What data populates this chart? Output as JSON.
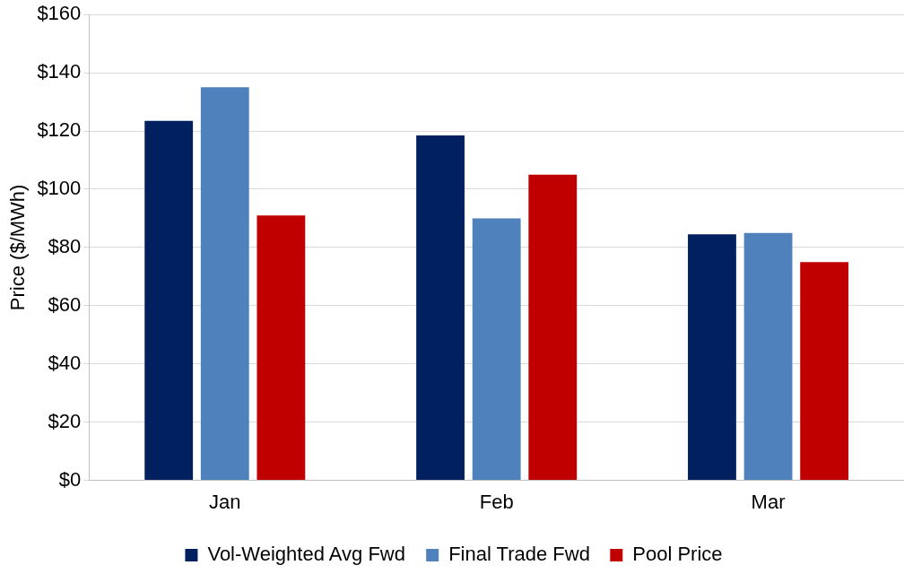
{
  "chart_data": {
    "type": "bar",
    "ylabel": "Price ($/MWh)",
    "categories": [
      "Jan",
      "Feb",
      "Mar"
    ],
    "series": [
      {
        "name": "Vol-Weighted Avg Fwd",
        "color": "#002060",
        "values": [
          123.5,
          118.5,
          84.5
        ]
      },
      {
        "name": "Final Trade Fwd",
        "color": "#4f81bd",
        "values": [
          135,
          90,
          85
        ]
      },
      {
        "name": "Pool Price",
        "color": "#c00000",
        "values": [
          91,
          105,
          75
        ]
      }
    ],
    "ylim": [
      0,
      160
    ],
    "yticks": [
      {
        "value": 0,
        "label": "$0"
      },
      {
        "value": 20,
        "label": "$20"
      },
      {
        "value": 40,
        "label": "$40"
      },
      {
        "value": 60,
        "label": "$60"
      },
      {
        "value": 80,
        "label": "$80"
      },
      {
        "value": 100,
        "label": "$100"
      },
      {
        "value": 120,
        "label": "$120"
      },
      {
        "value": 140,
        "label": "$140"
      },
      {
        "value": 160,
        "label": "$160"
      }
    ],
    "grid": "y",
    "legend": "bottom"
  }
}
